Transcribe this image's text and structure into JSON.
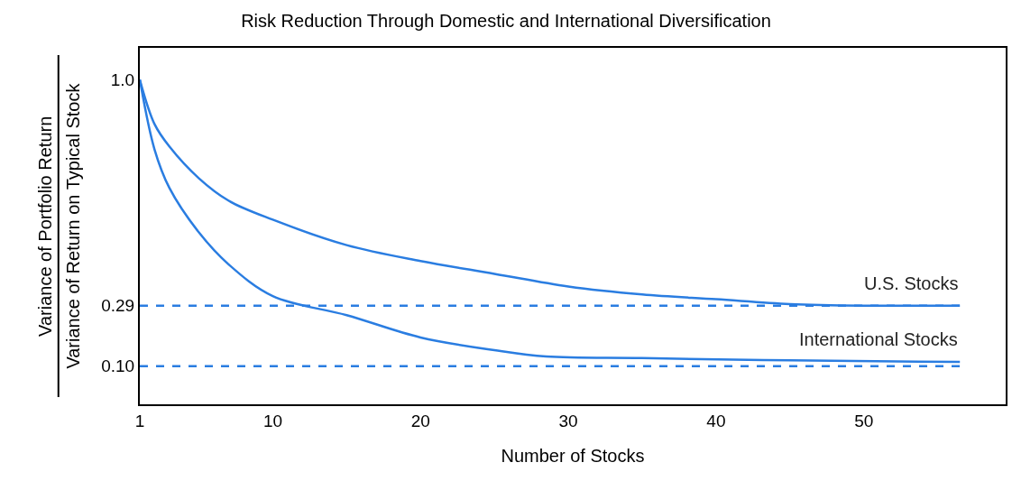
{
  "chart_data": {
    "type": "line",
    "title": "Risk Reduction Through Domestic and International Diversification",
    "xlabel": "Number of Stocks",
    "ylabel": "Variance of Portfolio Return\nVariance of Return on Typical Stock",
    "xlim": [
      1,
      59.6
    ],
    "xticks": [
      1,
      10,
      20,
      30,
      40,
      50
    ],
    "ylim": [
      -0.02,
      1.1
    ],
    "yticks": [
      {
        "value": 1.0,
        "label": "1.0"
      },
      0.29,
      {
        "value": 0.1,
        "label": "0.10"
      }
    ],
    "legend": false,
    "marker": "none",
    "line_style": "solid",
    "series": [
      {
        "name": "U.S. Stocks",
        "color": "#2a7de1",
        "x": [
          1,
          2,
          3,
          5,
          7,
          10,
          15,
          20,
          25,
          30,
          35,
          40,
          45,
          50,
          56.5
        ],
        "values": [
          1.0,
          0.86,
          0.79,
          0.69,
          0.62,
          0.56,
          0.48,
          0.43,
          0.39,
          0.35,
          0.325,
          0.31,
          0.295,
          0.29,
          0.29
        ]
      },
      {
        "name": "International Stocks",
        "color": "#2a7de1",
        "x": [
          1,
          2,
          3,
          5,
          7,
          10,
          15,
          20,
          25,
          28.5,
          35,
          45,
          56.5
        ],
        "values": [
          1.0,
          0.78,
          0.66,
          0.52,
          0.42,
          0.32,
          0.26,
          0.19,
          0.15,
          0.13,
          0.125,
          0.118,
          0.113
        ]
      }
    ],
    "ref_lines": [
      {
        "axis": "y",
        "value": 0.29,
        "color": "#2a7de1",
        "line_style": "dashed"
      },
      {
        "axis": "y",
        "value": 0.1,
        "color": "#2a7de1",
        "line_style": "dashed"
      }
    ]
  }
}
